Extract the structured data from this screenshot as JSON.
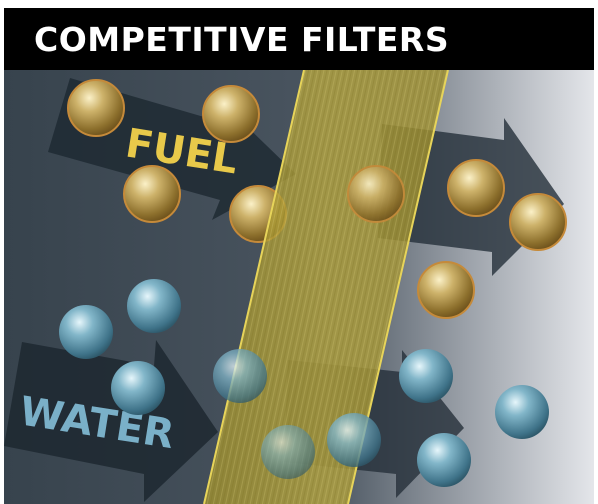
{
  "header": {
    "title": "COMPETITIVE FILTERS"
  },
  "diagram": {
    "fuel_label": "FUEL",
    "water_label": "WATER",
    "colors": {
      "header_bg": "#000000",
      "title_text": "#ffffff",
      "fuel_label": "#e8c94a",
      "water_label": "#7ab0c8",
      "fuel_droplet": "#b89a4e",
      "water_droplet": "#6fa2b8",
      "filter_media": "#b5a43a"
    }
  }
}
